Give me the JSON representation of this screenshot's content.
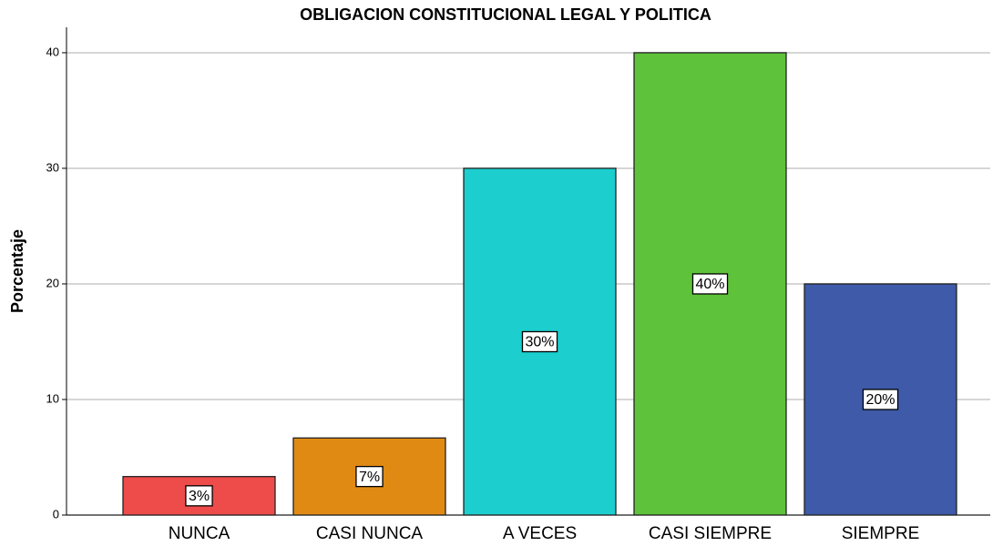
{
  "chart_data": {
    "type": "bar",
    "title": "OBLIGACION CONSTITUCIONAL LEGAL Y POLITICA",
    "y_label": "Porcentaje",
    "categories": [
      "NUNCA",
      "CASI NUNCA",
      "A VECES",
      "CASI SIEMPRE",
      "SIEMPRE"
    ],
    "values": [
      3.33,
      6.67,
      30,
      40,
      20
    ],
    "value_labels": [
      "3%",
      "7%",
      "30%",
      "40%",
      "20%"
    ],
    "colors": [
      "#ee4b4b",
      "#e08a14",
      "#1ccece",
      "#5ec23a",
      "#3e5aa8"
    ],
    "ylim": [
      0,
      42.2
    ],
    "yticks": [
      0,
      10,
      20,
      30,
      40
    ],
    "grid": true
  }
}
